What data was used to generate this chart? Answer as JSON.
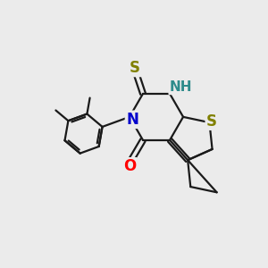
{
  "bg_color": "#ebebeb",
  "bond_color": "#1a1a1a",
  "bond_width": 1.6,
  "atom_colors": {
    "S_thione": "#808000",
    "S_thio": "#808000",
    "N": "#0000cc",
    "O": "#ff0000",
    "NH": "#2e8b8b",
    "C": "#1a1a1a"
  }
}
